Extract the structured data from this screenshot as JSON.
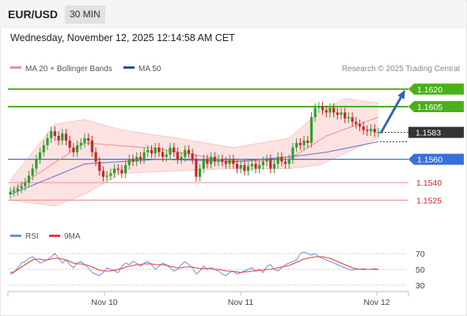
{
  "header": {
    "symbol": "EUR/USD",
    "timeframe": "30 MIN"
  },
  "datetime": "Wednesday, November 12, 2025 12:14:58 AM CET",
  "legend": {
    "ma20": "MA 20 + Bollinger Bands",
    "ma50": "MA 50",
    "rsi": "RSI",
    "rsi_ma": "9MA"
  },
  "credit": "Research © 2025 Trading Central",
  "colors": {
    "up": "#2ca02c",
    "down": "#c62828",
    "resistance": "#4caf1a",
    "pivot": "#3a6fd8",
    "support": "#ef9a9a",
    "support_text": "#c62828",
    "band": "#fde2e2",
    "ma20": "#f28b8b",
    "ma50": "#5e74c9",
    "rsi": "#6a8fe0",
    "rsi_ma": "#e53935",
    "arrow": "#2f66b0",
    "current": "#333333"
  },
  "chart_data": [
    {
      "type": "candlestick",
      "x_ticks": [
        "Nov 10",
        "Nov 11",
        "Nov 12"
      ],
      "ylim": [
        1.1505,
        1.163
      ],
      "levels": [
        {
          "value": 1.162,
          "label": "1.1620",
          "kind": "resistance"
        },
        {
          "value": 1.1605,
          "label": "1.1605",
          "kind": "resistance"
        },
        {
          "value": 1.1583,
          "label": "1.1583",
          "kind": "current"
        },
        {
          "value": 1.156,
          "label": "1.1560",
          "kind": "pivot"
        },
        {
          "value": 1.154,
          "label": "1.1540",
          "kind": "support"
        },
        {
          "value": 1.1525,
          "label": "1.1525",
          "kind": "support"
        }
      ],
      "closes": [
        1.1532,
        1.1533,
        1.1535,
        1.1537,
        1.154,
        1.1546,
        1.1552,
        1.156,
        1.1566,
        1.1572,
        1.1578,
        1.1584,
        1.158,
        1.1576,
        1.1582,
        1.1576,
        1.157,
        1.1566,
        1.1572,
        1.1574,
        1.1578,
        1.1576,
        1.1566,
        1.1558,
        1.155,
        1.1545,
        1.1546,
        1.1548,
        1.1552,
        1.1551,
        1.1548,
        1.1555,
        1.156,
        1.1558,
        1.1562,
        1.156,
        1.1566,
        1.1568,
        1.1565,
        1.157,
        1.1566,
        1.1562,
        1.1564,
        1.157,
        1.1566,
        1.156,
        1.1562,
        1.1568,
        1.1565,
        1.156,
        1.1545,
        1.1552,
        1.156,
        1.1556,
        1.1562,
        1.1558,
        1.156,
        1.1558,
        1.1556,
        1.156,
        1.1556,
        1.1552,
        1.1555,
        1.155,
        1.1554,
        1.1556,
        1.1552,
        1.1555,
        1.1558,
        1.156,
        1.1552,
        1.1556,
        1.1562,
        1.1558,
        1.1556,
        1.156,
        1.157,
        1.1574,
        1.1572,
        1.1576,
        1.1574,
        1.1596,
        1.1604,
        1.1605,
        1.1602,
        1.16,
        1.1604,
        1.16,
        1.1598,
        1.16,
        1.1595,
        1.1596,
        1.1592,
        1.159,
        1.1588,
        1.1585,
        1.1584,
        1.1586,
        1.1583,
        1.1583
      ],
      "open_first": 1.153,
      "ma20": [
        [
          0,
          1.1532
        ],
        [
          20,
          1.1574
        ],
        [
          40,
          1.1569
        ],
        [
          60,
          1.1558
        ],
        [
          75,
          1.156
        ],
        [
          85,
          1.158
        ],
        [
          99,
          1.1596
        ]
      ],
      "ma50": [
        [
          0,
          1.153
        ],
        [
          20,
          1.1556
        ],
        [
          40,
          1.156
        ],
        [
          60,
          1.1558
        ],
        [
          75,
          1.1562
        ],
        [
          85,
          1.1566
        ],
        [
          99,
          1.1575
        ]
      ],
      "bb_upper": [
        [
          0,
          1.1542
        ],
        [
          12,
          1.159
        ],
        [
          20,
          1.1594
        ],
        [
          30,
          1.1585
        ],
        [
          45,
          1.1578
        ],
        [
          60,
          1.157
        ],
        [
          75,
          1.1578
        ],
        [
          83,
          1.16
        ],
        [
          90,
          1.1612
        ],
        [
          99,
          1.1608
        ]
      ],
      "bb_lower": [
        [
          0,
          1.1525
        ],
        [
          12,
          1.152
        ],
        [
          20,
          1.153
        ],
        [
          30,
          1.1548
        ],
        [
          45,
          1.155
        ],
        [
          60,
          1.1552
        ],
        [
          75,
          1.1552
        ],
        [
          83,
          1.1555
        ],
        [
          90,
          1.1565
        ],
        [
          99,
          1.1578
        ]
      ]
    },
    {
      "type": "line",
      "title": "RSI",
      "yticks": [
        30,
        50,
        70
      ],
      "ylim": [
        25,
        78
      ],
      "series": [
        {
          "name": "RSI",
          "values": [
            44,
            46,
            52,
            58,
            60,
            64,
            66,
            62,
            58,
            60,
            62,
            66,
            70,
            64,
            58,
            62,
            56,
            52,
            58,
            60,
            56,
            52,
            46,
            44,
            42,
            46,
            52,
            50,
            48,
            46,
            54,
            58,
            56,
            60,
            58,
            54,
            58,
            60,
            56,
            50,
            54,
            58,
            56,
            52,
            48,
            50,
            56,
            60,
            56,
            52,
            44,
            48,
            54,
            50,
            52,
            50,
            48,
            44,
            42,
            46,
            48,
            44,
            46,
            48,
            50,
            52,
            48,
            50,
            46,
            54,
            56,
            50,
            48,
            52,
            56,
            58,
            60,
            62,
            70,
            72,
            70,
            68,
            70,
            66,
            64,
            62,
            60,
            58,
            56,
            54,
            52,
            50,
            49,
            50,
            50,
            51,
            50,
            50,
            51,
            50
          ]
        },
        {
          "name": "9MA",
          "values": [
            46,
            47,
            50,
            53,
            56,
            59,
            62,
            63,
            63,
            62,
            62,
            63,
            64,
            64,
            63,
            62,
            60,
            58,
            57,
            57,
            56,
            55,
            53,
            51,
            49,
            48,
            48,
            48,
            49,
            50,
            51,
            53,
            54,
            55,
            56,
            56,
            57,
            57,
            57,
            56,
            56,
            56,
            55,
            54,
            53,
            52,
            52,
            53,
            53,
            53,
            52,
            51,
            51,
            51,
            51,
            50,
            50,
            49,
            48,
            48,
            47,
            47,
            46,
            47,
            47,
            48,
            48,
            49,
            49,
            50,
            50,
            51,
            52,
            53,
            54,
            55,
            57,
            59,
            61,
            63,
            64,
            65,
            66,
            66,
            66,
            65,
            64,
            62,
            60,
            58,
            56,
            54,
            52,
            51,
            50,
            50,
            50,
            50,
            50,
            50
          ]
        }
      ]
    }
  ]
}
